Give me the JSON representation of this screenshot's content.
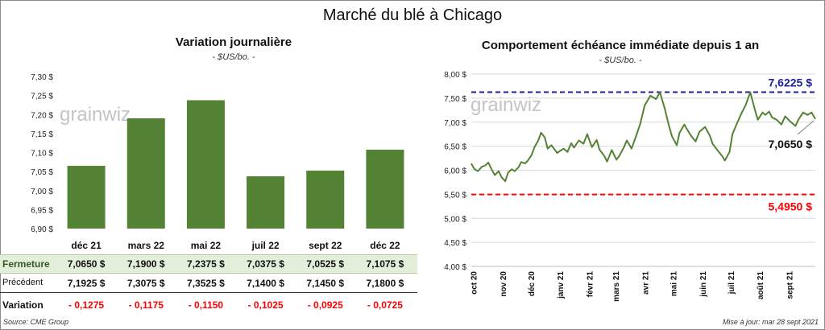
{
  "main_title": "Marché du blé à Chicago",
  "source": "Source: CME Group",
  "updated": "Mise à jour: mar 28 sept 2021",
  "watermark": "grainwiz",
  "colors": {
    "bar": "#548235",
    "line": "#548235",
    "high": "#1f1f9f",
    "low": "#ff0000",
    "table_highlight": "#e2efda",
    "negative": "#ff0000"
  },
  "chart_data": [
    {
      "type": "bar",
      "title": "Variation journalière",
      "subtitle": "- $US/bo. -",
      "categories": [
        "déc 21",
        "mars 22",
        "mai 22",
        "juil 22",
        "sept 22",
        "déc 22"
      ],
      "values": [
        7.065,
        7.19,
        7.2375,
        7.0375,
        7.0525,
        7.1075
      ],
      "ylim": [
        6.9,
        7.3
      ],
      "yticks": [
        "6,90 $",
        "6,95 $",
        "7,00 $",
        "7,05 $",
        "7,10 $",
        "7,15 $",
        "7,20 $",
        "7,25 $",
        "7,30 $"
      ],
      "table": {
        "rows": [
          {
            "label": "Fermeture",
            "values": [
              "7,0650  $",
              "7,1900  $",
              "7,2375  $",
              "7,0375  $",
              "7,0525  $",
              "7,1075  $"
            ]
          },
          {
            "label": "Précédent",
            "values": [
              "7,1925  $",
              "7,3075  $",
              "7,3525  $",
              "7,1400  $",
              "7,1450  $",
              "7,1800  $"
            ]
          },
          {
            "label": "Variation",
            "values": [
              "- 0,1275",
              "- 0,1175",
              "- 0,1150",
              "- 0,1025",
              "- 0,0925",
              "- 0,0725"
            ]
          }
        ]
      }
    },
    {
      "type": "line",
      "title": "Comportement  échéance immédiate depuis 1 an",
      "subtitle": "- $US/bo. -",
      "ylim": [
        4.0,
        8.0
      ],
      "yticks": [
        "4,00 $",
        "4,50 $",
        "5,00 $",
        "5,50 $",
        "6,00 $",
        "6,50 $",
        "7,00 $",
        "7,50 $",
        "8,00 $"
      ],
      "xticks": [
        "oct 20",
        "nov 20",
        "déc 20",
        "janv 21",
        "févr 21",
        "mars 21",
        "avr 21",
        "mai 21",
        "juin 21",
        "juil 21",
        "août 21",
        "sept 21"
      ],
      "x_start": "2020-09-28",
      "x_end": "2021-09-28",
      "high": {
        "value": 7.6225,
        "label": "7,6225 $"
      },
      "low": {
        "value": 5.495,
        "label": "5,4950 $"
      },
      "last": {
        "value": 7.065,
        "label": "7,0650 $"
      },
      "series": [
        {
          "x": [
            "2020-09-28",
            "2020-10-01",
            "2020-10-05",
            "2020-10-09",
            "2020-10-13",
            "2020-10-16",
            "2020-10-20",
            "2020-10-23",
            "2020-10-27",
            "2020-10-30",
            "2020-11-03",
            "2020-11-06",
            "2020-11-10",
            "2020-11-13",
            "2020-11-17",
            "2020-11-20",
            "2020-11-24",
            "2020-11-27",
            "2020-12-01",
            "2020-12-04",
            "2020-12-08",
            "2020-12-11",
            "2020-12-15",
            "2020-12-18",
            "2020-12-22",
            "2020-12-28",
            "2021-01-04",
            "2021-01-08",
            "2021-01-12",
            "2021-01-15",
            "2021-01-20",
            "2021-01-25",
            "2021-01-29",
            "2021-02-03",
            "2021-02-08",
            "2021-02-11",
            "2021-02-16",
            "2021-02-19",
            "2021-02-24",
            "2021-03-01",
            "2021-03-04",
            "2021-03-09",
            "2021-03-12",
            "2021-03-17",
            "2021-03-22",
            "2021-03-26",
            "2021-03-31",
            "2021-04-06",
            "2021-04-12",
            "2021-04-16",
            "2021-04-21",
            "2021-04-26",
            "2021-04-29",
            "2021-05-04",
            "2021-05-07",
            "2021-05-12",
            "2021-05-14",
            "2021-05-19",
            "2021-05-24",
            "2021-05-28",
            "2021-06-03",
            "2021-06-08",
            "2021-06-11",
            "2021-06-16",
            "2021-06-21",
            "2021-06-24",
            "2021-06-29",
            "2021-07-02",
            "2021-07-07",
            "2021-07-12",
            "2021-07-16",
            "2021-07-21",
            "2021-07-26",
            "2021-07-29",
            "2021-08-03",
            "2021-08-06",
            "2021-08-10",
            "2021-08-13",
            "2021-08-18",
            "2021-08-23",
            "2021-08-27",
            "2021-09-01",
            "2021-09-07",
            "2021-09-10",
            "2021-09-15",
            "2021-09-20",
            "2021-09-24",
            "2021-09-28"
          ],
          "values": [
            6.14,
            6.03,
            5.98,
            6.07,
            6.1,
            6.16,
            6.0,
            5.9,
            5.98,
            5.86,
            5.77,
            5.95,
            6.02,
            5.98,
            6.06,
            6.17,
            6.14,
            6.2,
            6.32,
            6.48,
            6.62,
            6.78,
            6.68,
            6.45,
            6.52,
            6.36,
            6.45,
            6.38,
            6.56,
            6.47,
            6.62,
            6.55,
            6.75,
            6.48,
            6.63,
            6.43,
            6.3,
            6.18,
            6.42,
            6.22,
            6.3,
            6.48,
            6.62,
            6.45,
            6.72,
            6.95,
            7.35,
            7.55,
            7.48,
            7.62,
            7.3,
            6.9,
            6.7,
            6.52,
            6.78,
            6.95,
            6.88,
            6.72,
            6.6,
            6.8,
            6.9,
            6.72,
            6.55,
            6.42,
            6.3,
            6.2,
            6.38,
            6.75,
            6.98,
            7.2,
            7.35,
            7.62,
            7.25,
            7.05,
            7.2,
            7.15,
            7.22,
            7.1,
            7.05,
            6.95,
            7.12,
            7.02,
            6.92,
            7.05,
            7.2,
            7.15,
            7.2,
            7.065
          ]
        }
      ]
    }
  ]
}
